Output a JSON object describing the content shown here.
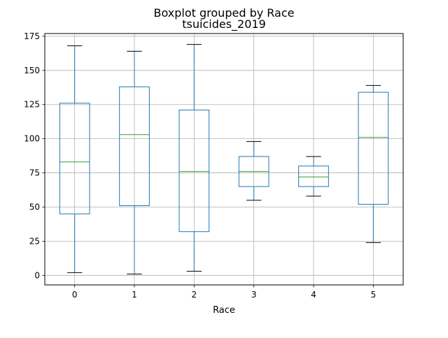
{
  "chart_data": {
    "type": "box",
    "title": "Boxplot grouped by Race",
    "subtitle": "tsuicides_2019",
    "xlabel": "Race",
    "ylabel": "",
    "ylim": [
      -7,
      177
    ],
    "yticks": [
      0,
      25,
      50,
      75,
      100,
      125,
      150,
      175
    ],
    "grid": true,
    "colors": {
      "box": "#1f77b4",
      "median": "#2ca02c",
      "whisker": "#1f77b4",
      "cap": "#000000",
      "grid": "#b0b0b0"
    },
    "categories": [
      "0",
      "1",
      "2",
      "3",
      "4",
      "5"
    ],
    "boxes": [
      {
        "category": "0",
        "whisker_low": 2,
        "q1": 45,
        "median": 83,
        "q3": 126,
        "whisker_high": 168
      },
      {
        "category": "1",
        "whisker_low": 1,
        "q1": 51,
        "median": 103,
        "q3": 138,
        "whisker_high": 164
      },
      {
        "category": "2",
        "whisker_low": 3,
        "q1": 32,
        "median": 76,
        "q3": 121,
        "whisker_high": 169
      },
      {
        "category": "3",
        "whisker_low": 55,
        "q1": 65,
        "median": 76,
        "q3": 87,
        "whisker_high": 98
      },
      {
        "category": "4",
        "whisker_low": 58,
        "q1": 65,
        "median": 72,
        "q3": 80,
        "whisker_high": 87
      },
      {
        "category": "5",
        "whisker_low": 24,
        "q1": 52,
        "median": 101,
        "q3": 134,
        "whisker_high": 139
      }
    ]
  }
}
